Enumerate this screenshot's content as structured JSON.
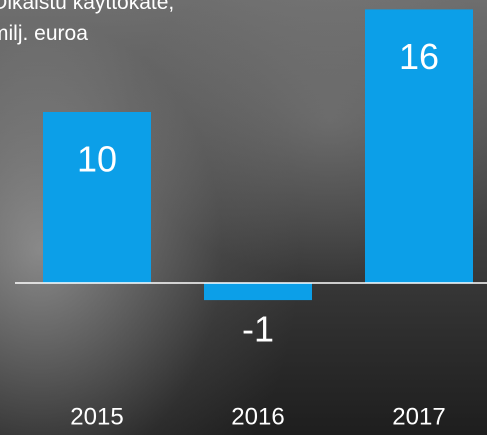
{
  "chart_data": {
    "type": "bar",
    "title": "Oikaistu käyttökate,\nmilj. euroa",
    "categories": [
      "2015",
      "2016",
      "2017"
    ],
    "values": [
      10,
      -1,
      16
    ],
    "color": "#0c9fe8"
  }
}
